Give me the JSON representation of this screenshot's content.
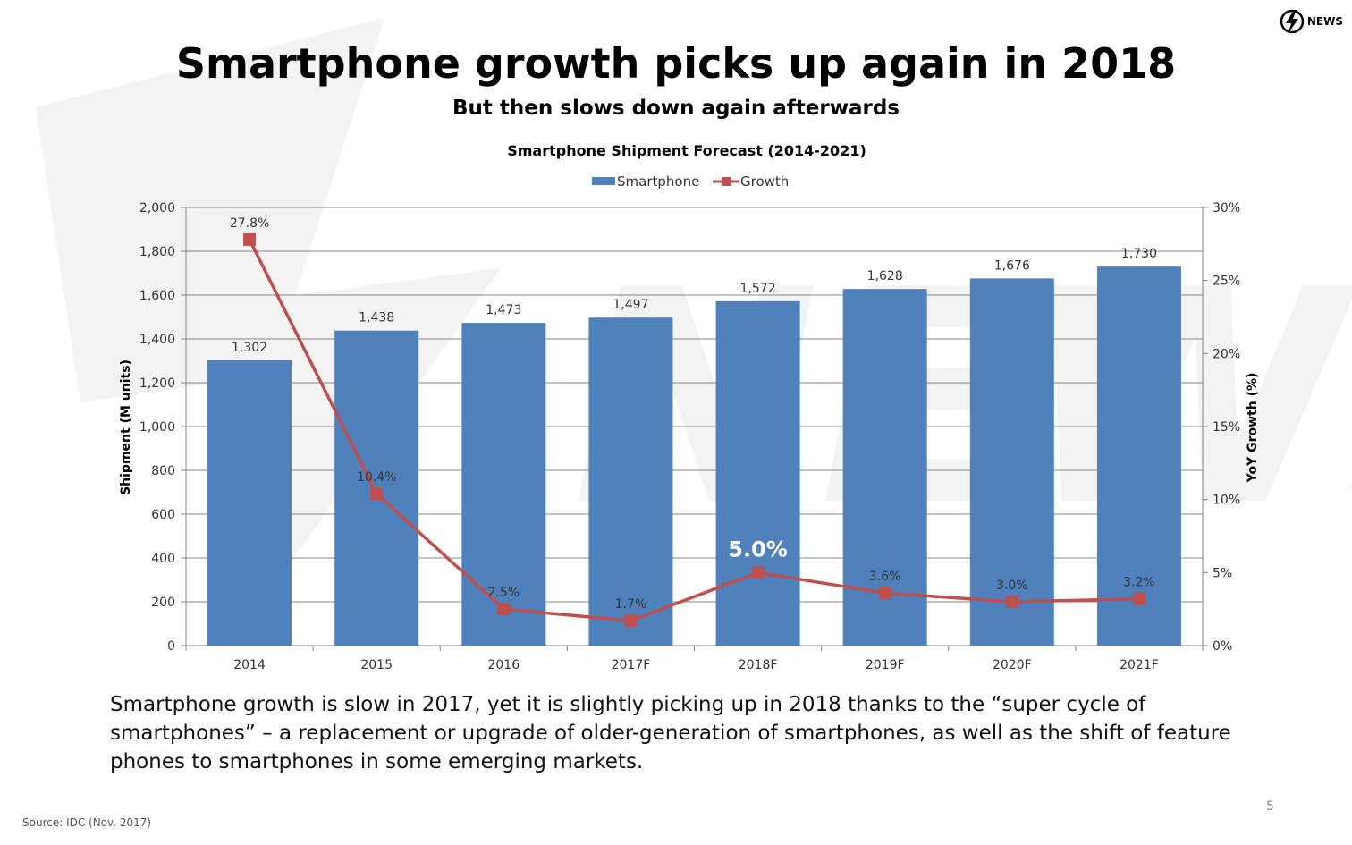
{
  "slide": {
    "title": "Smartphone growth picks up again in 2018",
    "subtitle": "But then slows down again afterwards",
    "body_text": "Smartphone growth is slow in 2017, yet it is slightly picking up in 2018 thanks to the “super cycle of smartphones” – a replacement or upgrade of older-generation of smartphones, as well as the shift of feature phones to smartphones in some emerging markets.",
    "source": "Source: IDC (Nov. 2017)",
    "page_number": "5",
    "logo_text": "NEWS",
    "logo_icon": "lightning-bolt-icon",
    "watermark": "NEWS"
  },
  "colors": {
    "bar": "#4F81BD",
    "line": "#C0504D",
    "text": "#000000",
    "axis": "#868686",
    "grid": "#868686",
    "highlight_label": "#FFFFFF",
    "watermark": "#F2F2F2"
  },
  "chart_data": {
    "type": "bar",
    "title": "Smartphone Shipment Forecast (2014-2021)",
    "legend_position": "top",
    "grid": true,
    "categories": [
      "2014",
      "2015",
      "2016",
      "2017F",
      "2018F",
      "2019F",
      "2020F",
      "2021F"
    ],
    "series": [
      {
        "name": "Smartphone",
        "type": "bar",
        "axis": "left",
        "values": [
          1302,
          1438,
          1473,
          1497,
          1572,
          1628,
          1676,
          1730
        ],
        "labels": [
          "1,302",
          "1,438",
          "1,473",
          "1,497",
          "1,572",
          "1,628",
          "1,676",
          "1,730"
        ]
      },
      {
        "name": "Growth",
        "type": "line",
        "axis": "right",
        "values": [
          27.8,
          10.4,
          2.5,
          1.7,
          5.0,
          3.6,
          3.0,
          3.2
        ],
        "labels": [
          "27.8%",
          "10.4%",
          "2.5%",
          "1.7%",
          "5.0%",
          "3.6%",
          "3.0%",
          "3.2%"
        ],
        "highlight_index": 4
      }
    ],
    "y_left": {
      "label": "Shipment (M units)",
      "range": [
        0,
        2000
      ],
      "ticks": [
        0,
        200,
        400,
        600,
        800,
        1000,
        1200,
        1400,
        1600,
        1800,
        2000
      ],
      "tick_labels": [
        "0",
        "200",
        "400",
        "600",
        "800",
        "1,000",
        "1,200",
        "1,400",
        "1,600",
        "1,800",
        "2,000"
      ]
    },
    "y_right": {
      "label": "YoY Growth (%)",
      "range": [
        0,
        30
      ],
      "ticks": [
        0,
        5,
        10,
        15,
        20,
        25,
        30
      ],
      "tick_labels": [
        "0%",
        "5%",
        "10%",
        "15%",
        "20%",
        "25%",
        "30%"
      ]
    }
  }
}
